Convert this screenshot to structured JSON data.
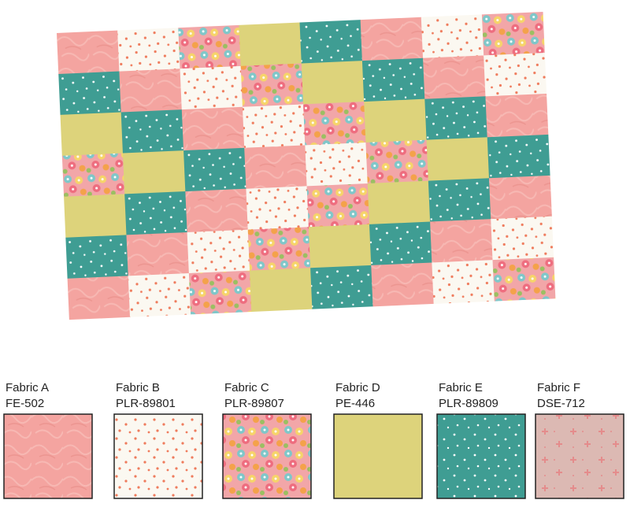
{
  "fabrics": [
    {
      "name": "Fabric A",
      "code": "FE-502"
    },
    {
      "name": "Fabric B",
      "code": "PLR-89801"
    },
    {
      "name": "Fabric C",
      "code": "PLR-89807"
    },
    {
      "name": "Fabric D",
      "code": "PE-446"
    },
    {
      "name": "Fabric E",
      "code": "PLR-89809"
    },
    {
      "name": "Fabric F",
      "code": "DSE-712"
    }
  ]
}
